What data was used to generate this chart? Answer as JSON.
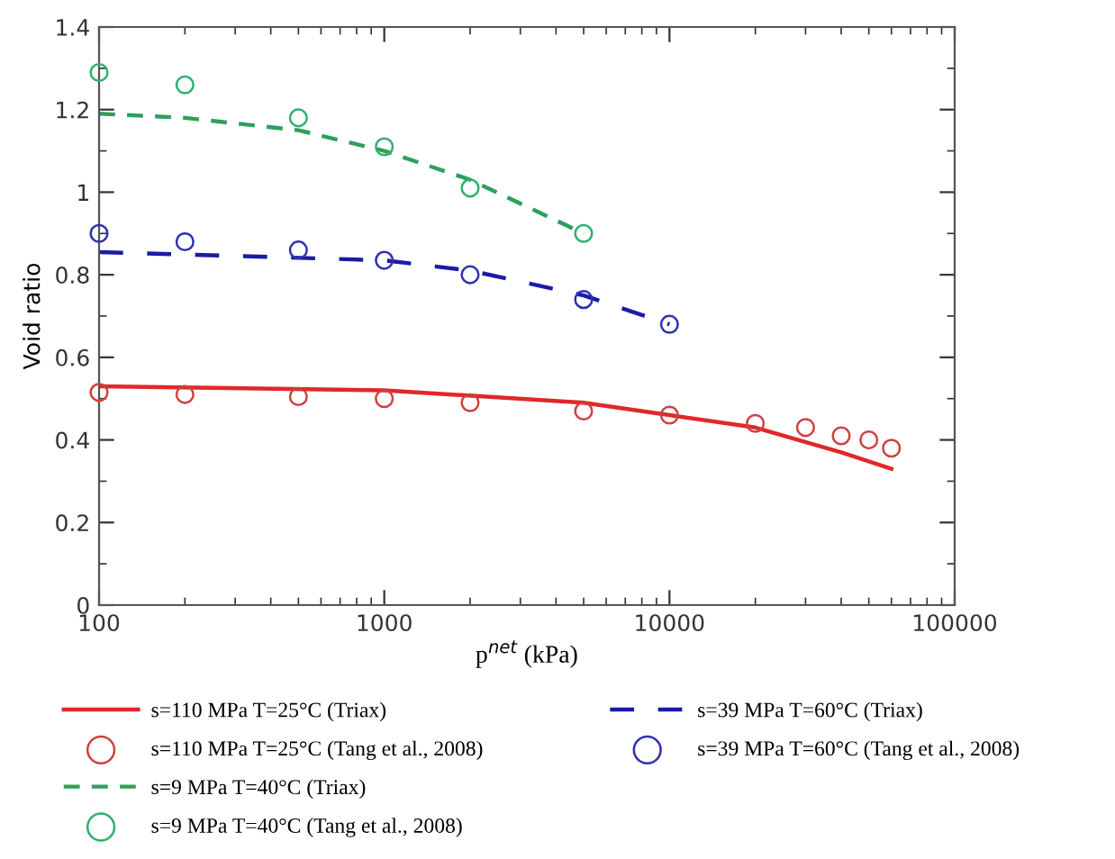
{
  "chart_data": {
    "type": "line",
    "xlabel": "p$^{net}$ (kPa)",
    "ylabel": "Void ratio",
    "log": "x",
    "xlim": [
      100,
      100000
    ],
    "xticks": [
      100,
      1000,
      10000,
      100000
    ],
    "ylim": [
      0,
      1.4
    ],
    "yticks": [
      0,
      0.2,
      0.4,
      0.6,
      0.8,
      1,
      1.2,
      1.4
    ],
    "grid": false,
    "legend": "bottom",
    "series": [
      {
        "name": "s=110 MPa T=25°C (Triax)",
        "line_style": "solid",
        "marker": "none",
        "color": "#e02828",
        "x": [
          100,
          1000,
          5000,
          10000,
          20000,
          40000,
          60000
        ],
        "values": [
          0.53,
          0.52,
          0.49,
          0.46,
          0.43,
          0.37,
          0.33
        ]
      },
      {
        "name": "s=110 MPa T=25°C (Tang et al., 2008)",
        "type": "scatter",
        "marker": "circle",
        "color": "#d04040",
        "x": [
          100,
          200,
          500,
          1000,
          2000,
          5000,
          10000,
          20000,
          30000,
          40000,
          50000,
          60000
        ],
        "values": [
          0.515,
          0.51,
          0.505,
          0.5,
          0.49,
          0.47,
          0.46,
          0.44,
          0.43,
          0.41,
          0.4,
          0.38
        ]
      },
      {
        "name": "s=9 MPa T=40°C (Triax)",
        "line_style": "dashed",
        "marker": "none",
        "color": "#2ea05a",
        "x": [
          100,
          200,
          500,
          1000,
          2000,
          5000
        ],
        "values": [
          1.19,
          1.18,
          1.15,
          1.1,
          1.03,
          0.9
        ]
      },
      {
        "name": "s=39 MPa T=60°C (Triax)",
        "line_style": "dashed",
        "marker": "none",
        "color": "#1a1aa8",
        "x": [
          100,
          1000,
          2000,
          5000,
          10000
        ],
        "values": [
          0.855,
          0.835,
          0.81,
          0.75,
          0.68
        ]
      },
      {
        "name": "s=39 MPa T=60°C (Tang et al., 2008)",
        "type": "scatter",
        "marker": "circle",
        "color": "#3030b0",
        "x": [
          100,
          200,
          500,
          1000,
          2000,
          5000,
          10000
        ],
        "values": [
          0.9,
          0.88,
          0.86,
          0.835,
          0.8,
          0.74,
          0.68
        ]
      },
      {
        "name": "s=9 MPa T=40°C (Tang et al., 2008)",
        "type": "scatter",
        "marker": "circle",
        "color": "#30b070",
        "x": [
          100,
          200,
          500,
          1000,
          2000,
          5000
        ],
        "values": [
          1.29,
          1.26,
          1.18,
          1.11,
          1.01,
          0.9
        ]
      }
    ]
  }
}
